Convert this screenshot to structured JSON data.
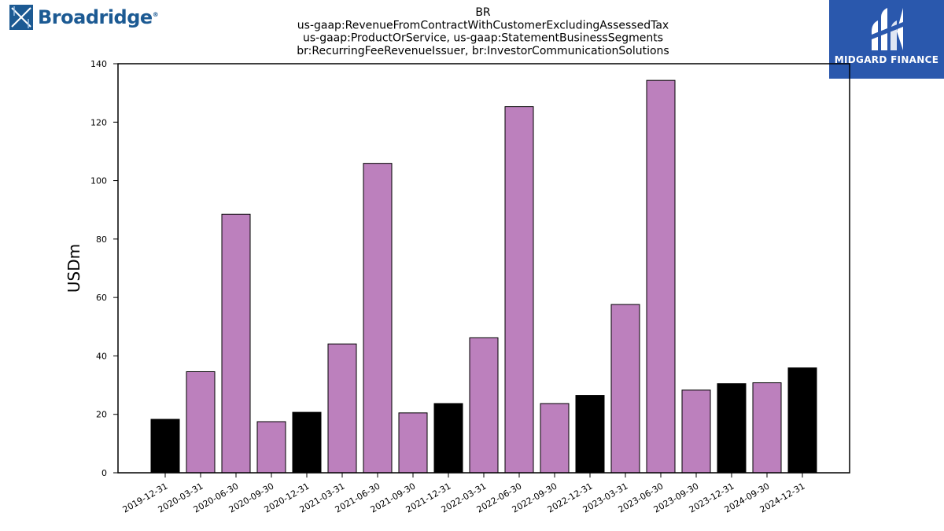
{
  "logos": {
    "left_word": "Broadridge",
    "left_reg": "®",
    "right_word": "MIDGARD FINANCE"
  },
  "colors": {
    "purple": "#bc80bd",
    "black": "#000000",
    "badge": "#2a58ad",
    "broadridge": "#1c5a93"
  },
  "chart_data": {
    "type": "bar",
    "title_lines": [
      "BR",
      "us-gaap:RevenueFromContractWithCustomerExcludingAssessedTax",
      "us-gaap:ProductOrService, us-gaap:StatementBusinessSegments",
      "br:RecurringFeeRevenueIssuer, br:InvestorCommunicationSolutions"
    ],
    "ylabel": "USDm",
    "ylim": [
      0,
      140
    ],
    "yticks": [
      0,
      20,
      40,
      60,
      80,
      100,
      120,
      140
    ],
    "categories": [
      "2019-12-31",
      "2020-03-31",
      "2020-06-30",
      "2020-09-30",
      "2020-12-31",
      "2021-03-31",
      "2021-06-30",
      "2021-09-30",
      "2021-12-31",
      "2022-03-31",
      "2022-06-30",
      "2022-09-30",
      "2022-12-31",
      "2023-03-31",
      "2023-06-30",
      "2023-09-30",
      "2023-12-31",
      "2024-09-30",
      "2024-12-31"
    ],
    "values": [
      18.3,
      34.6,
      88.5,
      17.5,
      20.7,
      44.1,
      105.9,
      20.5,
      23.7,
      46.2,
      125.3,
      23.7,
      26.5,
      57.6,
      134.3,
      28.3,
      30.5,
      30.8,
      35.9
    ],
    "bar_colors": [
      "#000000",
      "#bc80bd",
      "#bc80bd",
      "#bc80bd",
      "#000000",
      "#bc80bd",
      "#bc80bd",
      "#bc80bd",
      "#000000",
      "#bc80bd",
      "#bc80bd",
      "#bc80bd",
      "#000000",
      "#bc80bd",
      "#bc80bd",
      "#bc80bd",
      "#000000",
      "#bc80bd",
      "#000000"
    ],
    "grid": false
  }
}
